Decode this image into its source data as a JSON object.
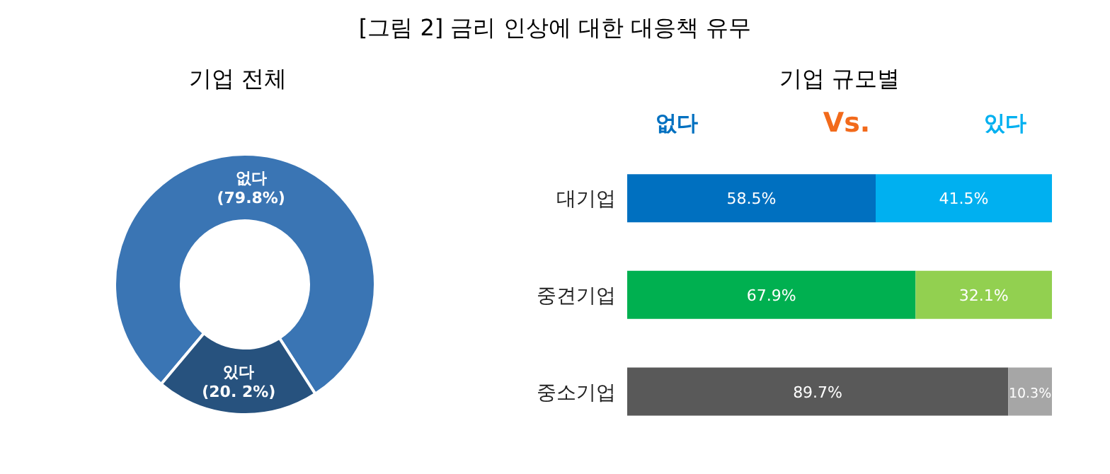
{
  "chart_data": [
    {
      "type": "donut",
      "title": "[그림 2] 금리 인상에 대한 대응책 유무",
      "subtitle": "기업 전체",
      "categories": [
        "없다",
        "있다"
      ],
      "values": [
        79.8,
        20.2
      ],
      "colors": [
        "#3a75b4",
        "#27527e"
      ],
      "value_labels": [
        "(79.8%)",
        "(20. 2%)"
      ]
    },
    {
      "type": "bar",
      "orientation": "horizontal",
      "stacked": true,
      "title": "기업 규모별",
      "categories": [
        "대기업",
        "중견기업",
        "중소기업"
      ],
      "legend": "top",
      "annotations": [
        "Vs."
      ],
      "series": [
        {
          "name": "없다",
          "colors": [
            "#0070c0",
            "#00b050",
            "#595959"
          ],
          "values": [
            58.5,
            67.9,
            89.7
          ],
          "value_labels": [
            "58.5%",
            "67.9%",
            "89.7%"
          ]
        },
        {
          "name": "있다",
          "colors": [
            "#00b0f0",
            "#92d050",
            "#a6a6a6"
          ],
          "values": [
            41.5,
            32.1,
            10.3
          ],
          "value_labels": [
            "41.5%",
            "32.1%",
            "10.3%"
          ]
        }
      ]
    }
  ]
}
